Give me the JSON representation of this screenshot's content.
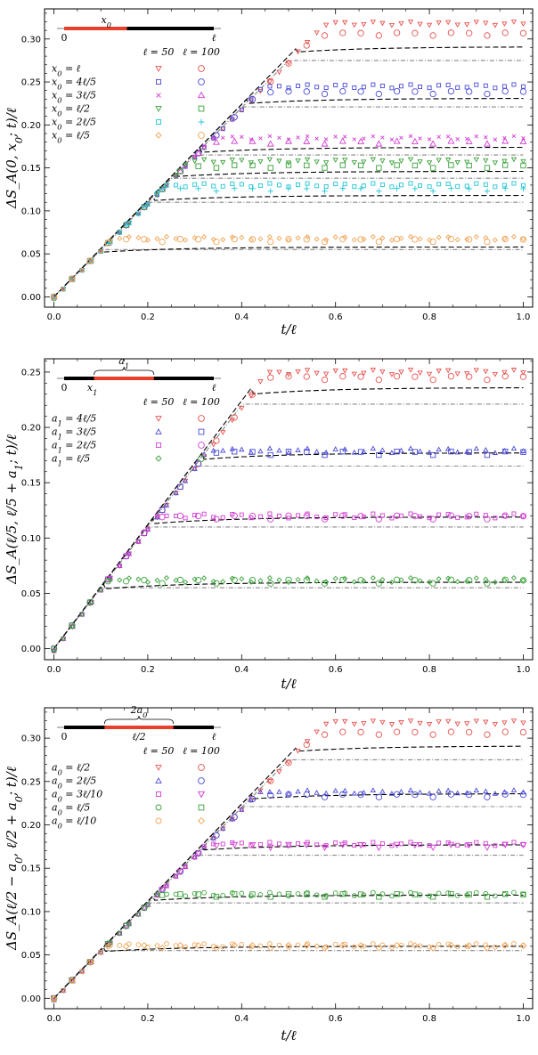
{
  "chart_data": [
    {
      "type": "scatter",
      "ylabel": "ΔS_A(0, x_0; t)/ℓ",
      "xlabel": "t/ℓ",
      "xlim": [
        -0.02,
        1.02
      ],
      "ylim": [
        -0.012,
        0.335
      ],
      "xticks": [
        0.0,
        0.2,
        0.4,
        0.6,
        0.8,
        1.0
      ],
      "xtick_labels": [
        "0.0",
        "0.2",
        "0.4",
        "0.6",
        "0.8",
        "1.0"
      ],
      "yticks": [
        0.0,
        0.05,
        0.1,
        0.15,
        0.2,
        0.25,
        0.3
      ],
      "ytick_labels": [
        "0.00",
        "0.05",
        "0.10",
        "0.15",
        "0.20",
        "0.25",
        "0.30"
      ],
      "inset": {
        "var_label": "x0",
        "left_label": "0",
        "right_label": "ℓ",
        "mode": "left",
        "a": 0.0,
        "b": 0.42
      },
      "legend_header": {
        "col1": "ℓ = 50",
        "col2": "ℓ = 100"
      },
      "series": [
        {
          "name": "x0 = ℓ",
          "color": "#e8534f",
          "m1": "tri-down",
          "m2": "circle",
          "p": 1.0,
          "sat1": 0.318,
          "sat2": 0.306,
          "dash": 0.291,
          "dot": 0.275
        },
        {
          "name": "x0 = 4ℓ/5",
          "color": "#4a4ad8",
          "m1": "square",
          "m2": "circle",
          "p": 0.8,
          "sat1": 0.245,
          "sat2": 0.238,
          "dash": 0.231,
          "dot": 0.221
        },
        {
          "name": "x0 = 3ℓ/5",
          "color": "#d33fd3",
          "m1": "cross",
          "m2": "tri-up",
          "p": 0.6,
          "sat1": 0.185,
          "sat2": 0.18,
          "dash": 0.174,
          "dot": 0.165
        },
        {
          "name": "x0 = ℓ/2",
          "color": "#3aa23a",
          "m1": "tri-down",
          "m2": "square",
          "p": 0.5,
          "sat1": 0.158,
          "sat2": 0.152,
          "dash": 0.146,
          "dot": 0.138
        },
        {
          "name": "x0 = 2ℓ/5",
          "color": "#22c6d6",
          "m1": "square",
          "m2": "plus",
          "p": 0.4,
          "sat1": 0.13,
          "sat2": 0.125,
          "dash": 0.118,
          "dot": 0.11
        },
        {
          "name": "x0 = ℓ/5",
          "color": "#f2a456",
          "m1": "diamond",
          "m2": "circle",
          "p": 0.2,
          "sat1": 0.068,
          "sat2": 0.066,
          "dash": 0.058,
          "dot": 0.055
        }
      ]
    },
    {
      "type": "scatter",
      "ylabel": "ΔS_A(ℓ/5, ℓ/5 + a_1; t)/ℓ",
      "xlabel": "t/ℓ",
      "xlim": [
        -0.02,
        1.02
      ],
      "ylim": [
        -0.01,
        0.262
      ],
      "xticks": [
        0.0,
        0.2,
        0.4,
        0.6,
        0.8,
        1.0
      ],
      "xtick_labels": [
        "0.0",
        "0.2",
        "0.4",
        "0.6",
        "0.8",
        "1.0"
      ],
      "yticks": [
        0.0,
        0.05,
        0.1,
        0.15,
        0.2,
        0.25
      ],
      "ytick_labels": [
        "0.00",
        "0.05",
        "0.10",
        "0.15",
        "0.20",
        "0.25"
      ],
      "inset": {
        "var_label": "a1",
        "sub_label": "x1",
        "left_label": "0",
        "right_label": "ℓ",
        "mode": "offset",
        "a": 0.2,
        "b": 0.6
      },
      "legend_header": {
        "col1": "ℓ = 50",
        "col2": "ℓ = 100"
      },
      "series": [
        {
          "name": "a1 = 4ℓ/5",
          "color": "#e8534f",
          "m1": "tri-down",
          "m2": "circle",
          "p": 0.8,
          "sat1": 0.25,
          "sat2": 0.245,
          "dash": 0.236,
          "dot": 0.221
        },
        {
          "name": "a1 = 3ℓ/5",
          "color": "#4a4ad8",
          "m1": "tri-up",
          "m2": "square",
          "p": 0.6,
          "sat1": 0.179,
          "sat2": 0.177,
          "dash": 0.177,
          "dot": 0.165
        },
        {
          "name": "a1 = 2ℓ/5",
          "color": "#d33fd3",
          "m1": "square",
          "m2": "circle",
          "p": 0.4,
          "sat1": 0.12,
          "sat2": 0.119,
          "dash": 0.119,
          "dot": 0.11
        },
        {
          "name": "a1 = ℓ/5",
          "color": "#3aa23a",
          "m1": "diamond",
          "m2": "circle",
          "p": 0.2,
          "sat1": 0.062,
          "sat2": 0.061,
          "dash": 0.06,
          "dot": 0.055
        }
      ]
    },
    {
      "type": "scatter",
      "ylabel": "ΔS_A(ℓ/2 − a_0, ℓ/2 + a_0; t)/ℓ",
      "xlabel": "t/ℓ",
      "xlim": [
        -0.02,
        1.02
      ],
      "ylim": [
        -0.012,
        0.335
      ],
      "xticks": [
        0.0,
        0.2,
        0.4,
        0.6,
        0.8,
        1.0
      ],
      "xtick_labels": [
        "0.0",
        "0.2",
        "0.4",
        "0.6",
        "0.8",
        "1.0"
      ],
      "yticks": [
        0.0,
        0.05,
        0.1,
        0.15,
        0.2,
        0.25,
        0.3
      ],
      "ytick_labels": [
        "0.00",
        "0.05",
        "0.10",
        "0.15",
        "0.20",
        "0.25",
        "0.30"
      ],
      "inset": {
        "var_label": "2a0",
        "mid_label": "ℓ/2",
        "left_label": "0",
        "right_label": "ℓ",
        "mode": "center",
        "a": 0.27,
        "b": 0.73
      },
      "legend_header": {
        "col1": "ℓ = 50",
        "col2": "ℓ = 100"
      },
      "series": [
        {
          "name": "a0 = ℓ/2",
          "color": "#e8534f",
          "m1": "tri-down",
          "m2": "circle",
          "p": 1.0,
          "sat1": 0.318,
          "sat2": 0.306,
          "dash": 0.291,
          "dot": 0.275
        },
        {
          "name": "a0 = 2ℓ/5",
          "color": "#4a4ad8",
          "m1": "tri-up",
          "m2": "circle",
          "p": 0.8,
          "sat1": 0.238,
          "sat2": 0.234,
          "dash": 0.236,
          "dot": 0.221
        },
        {
          "name": "a0 = 3ℓ/10",
          "color": "#d33fd3",
          "m1": "square",
          "m2": "tri-down",
          "p": 0.6,
          "sat1": 0.178,
          "sat2": 0.176,
          "dash": 0.177,
          "dot": 0.165
        },
        {
          "name": "a0 = ℓ/5",
          "color": "#3aa23a",
          "m1": "circle",
          "m2": "square",
          "p": 0.4,
          "sat1": 0.12,
          "sat2": 0.119,
          "dash": 0.119,
          "dot": 0.11
        },
        {
          "name": "a0 = ℓ/10",
          "color": "#f2a456",
          "m1": "circle",
          "m2": "diamond",
          "p": 0.2,
          "sat1": 0.061,
          "sat2": 0.06,
          "dash": 0.06,
          "dot": 0.055
        }
      ]
    }
  ]
}
